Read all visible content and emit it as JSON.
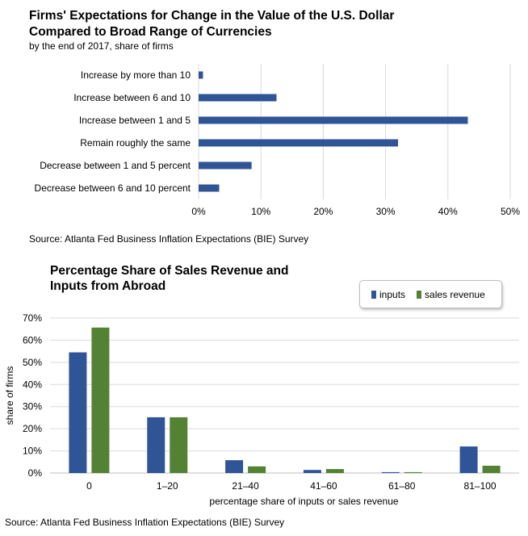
{
  "chart_data": [
    {
      "type": "bar",
      "orientation": "horizontal",
      "title_line1": "Firms' Expectations for Change in the Value of the U.S. Dollar",
      "title_line2": "Compared to Broad Range of Currencies",
      "subtitle": "by the end of 2017, share of firms",
      "categories": [
        "Increase by more than 10",
        "Increase between 6 and 10",
        "Increase between 1 and 5",
        "Remain roughly the same",
        "Decrease between 1 and 5 percent",
        "Decrease between 6 and 10 percent"
      ],
      "values": [
        0.7,
        12.5,
        43.2,
        32.0,
        8.5,
        3.3
      ],
      "xlim": [
        0,
        50
      ],
      "xticks": [
        "0%",
        "10%",
        "20%",
        "30%",
        "40%",
        "50%"
      ],
      "xtick_values": [
        0,
        10,
        20,
        30,
        40,
        50
      ],
      "bar_color": "#2f5597",
      "grid": true,
      "source": "Source: Atlanta Fed Business Inflation Expectations (BIE) Survey"
    },
    {
      "type": "bar",
      "title_line1": "Percentage Share of Sales Revenue and",
      "title_line2": "Inputs from Abroad",
      "categories": [
        "0",
        "1–20",
        "21–40",
        "41–60",
        "61–80",
        "81–100"
      ],
      "series": [
        {
          "name": "inputs",
          "color": "#2f5597",
          "values": [
            54.5,
            25.2,
            5.8,
            1.4,
            0.4,
            12.0
          ]
        },
        {
          "name": "sales revenue",
          "color": "#548235",
          "values": [
            65.7,
            25.2,
            3.0,
            1.8,
            0.4,
            3.3
          ]
        }
      ],
      "ylim": [
        0,
        70
      ],
      "yticks": [
        "0%",
        "10%",
        "20%",
        "30%",
        "40%",
        "50%",
        "60%",
        "70%"
      ],
      "ytick_values": [
        0,
        10,
        20,
        30,
        40,
        50,
        60,
        70
      ],
      "xlabel": "percentage share of inputs or sales revenue",
      "ylabel": "share of firms",
      "legend_position": "top-right",
      "grid": true,
      "source": "Source: Atlanta Fed Business Inflation Expectations (BIE) Survey"
    }
  ]
}
